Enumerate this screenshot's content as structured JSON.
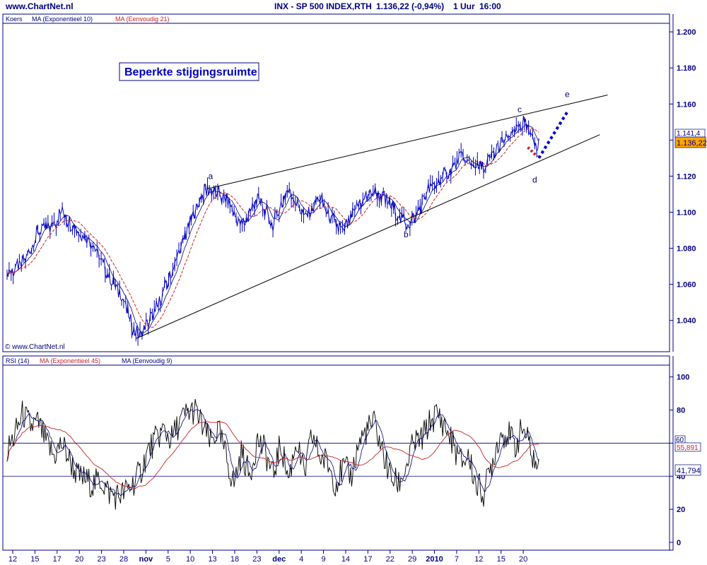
{
  "site": "www.ChartNet.nl",
  "header": {
    "symbol": "INX - SP 500 INDEX,RTH",
    "quote": "1.136,22 (-0,94%)",
    "interval": "1 Uur",
    "time": "16:00"
  },
  "colors": {
    "navy": "#000080",
    "price": "#0000c0",
    "ma_red": "#cc2222",
    "badge_orange": "#ffa500"
  },
  "price_panel": {
    "legend": [
      "Koers",
      "MA (Exponentieel 10)",
      "MA (Eenvoudig 21)"
    ],
    "note": "Beperkte stijgingsruimte",
    "copyright": "© www.ChartNet.nl",
    "last_label": "1.136,22",
    "prev_label": "1.141,4",
    "wave_labels": [
      "a",
      "b",
      "c",
      "d",
      "e"
    ]
  },
  "rsi_panel": {
    "legend": [
      "RSI (14)",
      "MA (Exponentieel 45)",
      "MA (Eenvoudig 9)"
    ],
    "last_label": "41,794",
    "ma_label": "55,891",
    "level_label": "60"
  },
  "x_axis": {
    "labels": [
      "12",
      "15",
      "17",
      "20",
      "23",
      "28",
      "nov",
      "5",
      "10",
      "13",
      "18",
      "23",
      "dec",
      "4",
      "9",
      "14",
      "17",
      "22",
      "29",
      "2010",
      "7",
      "12",
      "15",
      "20"
    ],
    "bold": [
      "nov",
      "dec",
      "2010"
    ]
  },
  "chart_data": [
    {
      "type": "line",
      "series_kind": "hourly price with two moving averages and wedge trendlines",
      "y_ticks": [
        1040,
        1060,
        1080,
        1100,
        1120,
        1140,
        1160,
        1180,
        1200
      ],
      "y_tick_labels": [
        "1.040",
        "1.060",
        "1.080",
        "1.100",
        "1.120",
        "1.140",
        "1.160",
        "1.180",
        "1.200"
      ],
      "ylim": [
        1025,
        1202
      ],
      "x_session_range": [
        0,
        70
      ],
      "key_points": [
        [
          0,
          1065
        ],
        [
          2,
          1072
        ],
        [
          4,
          1090
        ],
        [
          6,
          1094
        ],
        [
          7,
          1100
        ],
        [
          9,
          1090
        ],
        [
          11,
          1082
        ],
        [
          13,
          1065
        ],
        [
          15,
          1050
        ],
        [
          16,
          1036
        ],
        [
          17,
          1032
        ],
        [
          19,
          1045
        ],
        [
          21,
          1065
        ],
        [
          23,
          1090
        ],
        [
          25,
          1110
        ],
        [
          26,
          1113
        ],
        [
          28,
          1107
        ],
        [
          30,
          1092
        ],
        [
          32,
          1108
        ],
        [
          34,
          1093
        ],
        [
          36,
          1113
        ],
        [
          38,
          1097
        ],
        [
          40,
          1108
        ],
        [
          41,
          1099
        ],
        [
          43,
          1089
        ],
        [
          45,
          1105
        ],
        [
          47,
          1112
        ],
        [
          49,
          1104
        ],
        [
          51,
          1094
        ],
        [
          52,
          1096
        ],
        [
          54,
          1113
        ],
        [
          56,
          1120
        ],
        [
          58,
          1130
        ],
        [
          60,
          1125
        ],
        [
          61,
          1124
        ],
        [
          63,
          1137
        ],
        [
          65,
          1145
        ],
        [
          66,
          1150
        ],
        [
          67,
          1142
        ],
        [
          68,
          1136.22
        ]
      ],
      "trendlines": {
        "upper": [
          [
            25.6,
            1113
          ],
          [
            76.8,
            1165
          ]
        ],
        "lower": [
          [
            16.5,
            1030
          ],
          [
            75.8,
            1143
          ]
        ]
      },
      "projection": [
        [
          66.6,
          1136
        ],
        [
          68,
          1130
        ],
        [
          71.7,
          1156
        ]
      ],
      "wave_points": {
        "a": [
          26,
          1113
        ],
        "b": [
          51,
          1094
        ],
        "c": [
          66,
          1150
        ],
        "d": [
          67,
          1125
        ],
        "e": [
          71.7,
          1156
        ]
      }
    },
    {
      "type": "line",
      "series_kind": "RSI (14) with moving averages",
      "y_ticks": [
        0,
        20,
        40,
        60,
        80,
        100
      ],
      "ylim": [
        -3,
        105
      ],
      "levels": [
        40,
        60
      ],
      "key_points": [
        [
          0,
          55
        ],
        [
          1,
          65
        ],
        [
          2,
          78
        ],
        [
          3,
          70
        ],
        [
          4,
          72
        ],
        [
          5,
          60
        ],
        [
          6,
          52
        ],
        [
          7,
          60
        ],
        [
          8,
          50
        ],
        [
          9,
          40
        ],
        [
          10,
          38
        ],
        [
          11,
          35
        ],
        [
          12,
          38
        ],
        [
          13,
          30
        ],
        [
          14,
          28
        ],
        [
          15,
          30
        ],
        [
          16,
          35
        ],
        [
          17,
          42
        ],
        [
          18,
          55
        ],
        [
          19,
          62
        ],
        [
          20,
          68
        ],
        [
          21,
          62
        ],
        [
          22,
          72
        ],
        [
          23,
          78
        ],
        [
          24,
          80
        ],
        [
          25,
          70
        ],
        [
          26,
          60
        ],
        [
          27,
          68
        ],
        [
          28,
          52
        ],
        [
          29,
          35
        ],
        [
          30,
          55
        ],
        [
          31,
          40
        ],
        [
          32,
          62
        ],
        [
          33,
          55
        ],
        [
          34,
          40
        ],
        [
          35,
          60
        ],
        [
          36,
          38
        ],
        [
          37,
          62
        ],
        [
          38,
          40
        ],
        [
          39,
          65
        ],
        [
          40,
          52
        ],
        [
          41,
          48
        ],
        [
          42,
          36
        ],
        [
          43,
          45
        ],
        [
          44,
          40
        ],
        [
          45,
          60
        ],
        [
          46,
          68
        ],
        [
          47,
          72
        ],
        [
          48,
          55
        ],
        [
          49,
          40
        ],
        [
          50,
          35
        ],
        [
          51,
          45
        ],
        [
          52,
          60
        ],
        [
          53,
          62
        ],
        [
          54,
          72
        ],
        [
          55,
          78
        ],
        [
          56,
          70
        ],
        [
          57,
          60
        ],
        [
          58,
          48
        ],
        [
          59,
          52
        ],
        [
          60,
          35
        ],
        [
          61,
          30
        ],
        [
          62,
          48
        ],
        [
          63,
          65
        ],
        [
          64,
          66
        ],
        [
          65,
          58
        ],
        [
          66,
          70
        ],
        [
          67,
          55
        ],
        [
          68,
          42
        ]
      ]
    }
  ]
}
